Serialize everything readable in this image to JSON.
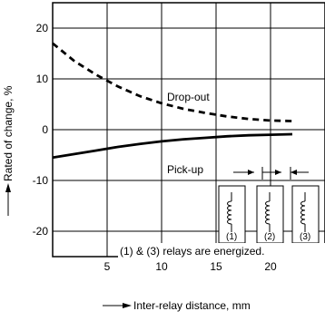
{
  "chart_data": {
    "type": "line",
    "title": "",
    "xlabel": "Inter-relay distance, mm",
    "ylabel": "Rated of change, %",
    "xlim": [
      0,
      25
    ],
    "ylim": [
      -25,
      25
    ],
    "grid": true,
    "x_ticks": [
      5,
      10,
      15,
      20
    ],
    "y_ticks": [
      20,
      10,
      0,
      -10,
      -20
    ],
    "series": [
      {
        "name": "Drop-out",
        "style": "dashed",
        "color": "#000000",
        "x": [
          0,
          2,
          4,
          6,
          8,
          10,
          12,
          14,
          16,
          18,
          20,
          22
        ],
        "y": [
          17,
          13.5,
          10.8,
          8.5,
          6.6,
          5.2,
          4.1,
          3.3,
          2.6,
          2.1,
          1.8,
          1.7
        ]
      },
      {
        "name": "Pick-up",
        "style": "solid",
        "color": "#000000",
        "x": [
          0,
          2,
          4,
          6,
          8,
          10,
          12,
          14,
          16,
          18,
          20,
          22
        ],
        "y": [
          -5.5,
          -4.8,
          -4.1,
          -3.4,
          -2.8,
          -2.3,
          -1.9,
          -1.6,
          -1.3,
          -1.1,
          -1.0,
          -0.9
        ]
      }
    ],
    "annotations": {
      "dropout_label": "Drop-out",
      "pickup_label": "Pick-up",
      "energized_note": "(1) & (3) relays are energized.",
      "relay_labels": [
        "(1)",
        "(2)",
        "(3)"
      ]
    }
  }
}
